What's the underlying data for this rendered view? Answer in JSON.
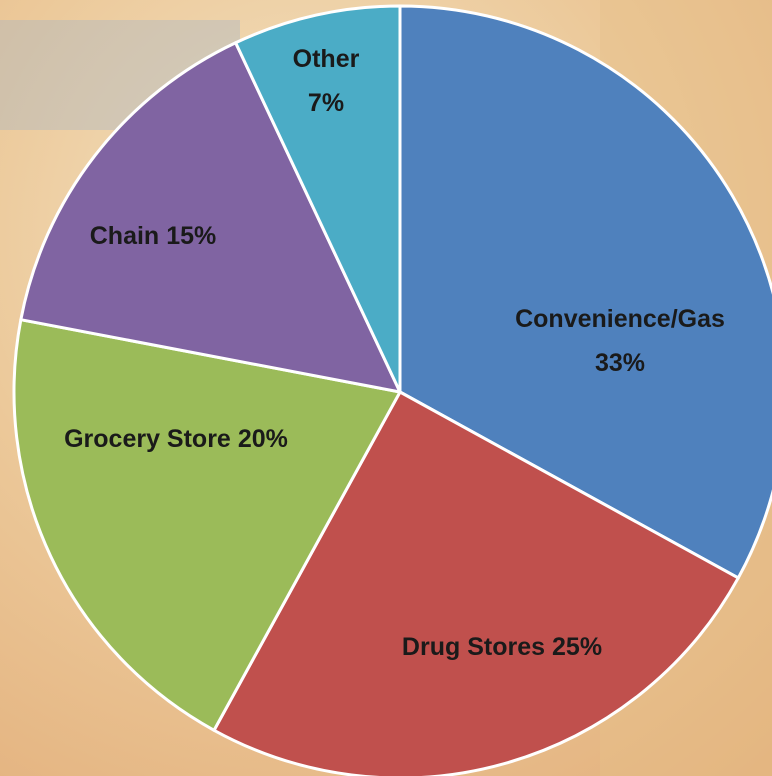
{
  "chart_data": {
    "type": "pie",
    "categories": [
      "Convenience/Gas",
      "Drug Stores",
      "Grocery Store",
      "Chain",
      "Other"
    ],
    "values": [
      33,
      25,
      20,
      15,
      7
    ],
    "value_labels": [
      "33%",
      "25%",
      "20%",
      "15%",
      "7%"
    ],
    "colors": [
      "#4f81bd",
      "#c0504d",
      "#9bbb59",
      "#8064a2",
      "#4bacc6"
    ]
  }
}
